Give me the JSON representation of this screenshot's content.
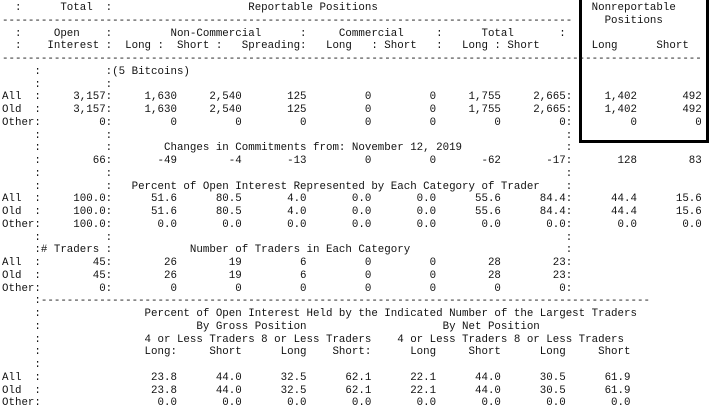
{
  "report": {
    "lines": [
      "  :      Total  :                     Reportable Positions                                 Nonreportable",
      "----------------------------------------------------------------------------------------     Positions",
      "  :     Open    :         Non-Commercial      :     Commercial     :      Total       :",
      "  :    Interest :  Long :  Short :   Spreading:   Long   : Short   :   Long : Short        Long      Short",
      "------------------------------------------------------------------------------------------------------------",
      "     :          :(5 Bitcoins)",
      "     :          :",
      "All  :     3,157:     1,630     2,540       125         0         0     1,755     2,665:     1,402       492",
      "Old  :     3,157:     1,630     2,540       125         0         0     1,755     2,665:     1,402       492",
      "Other:         0:         0         0         0         0         0         0         0:         0         0",
      "     :          :                                                                      :",
      "     :          :        Changes in Commitments from: November 12, 2019                :",
      "     :        66:       -49        -4       -13         0         0       -62       -17:       128        83",
      "     :          :                                                                      :",
      "     :          :   Percent of Open Interest Represented by Each Category of Trader    :",
      "All  :     100.0:      51.6      80.5       4.0       0.0       0.0      55.6      84.4:      44.4      15.6",
      "Old  :     100.0:      51.6      80.5       4.0       0.0       0.0      55.6      84.4:      44.4      15.6",
      "Other:     100.0:       0.0       0.0       0.0       0.0       0.0       0.0       0.0:       0.0       0.0",
      "     :          :                                                                      :",
      "     :# Traders :            Number of Traders in Each Category                        :",
      "All  :        45:        26        19         6         0         0        28        23:",
      "Old  :        45:        26        19         6         0         0        28        23:",
      "Other:         0:         0         0         0         0         0         0         0:",
      "     :----------------------------------------------------------------------------------------------",
      "     :                Percent of Open Interest Held by the Indicated Number of the Largest Traders",
      "     :                        By Gross Position                     By Net Position",
      "     :                4 or Less Traders 8 or Less Traders    4 or Less Traders 8 or Less Traders",
      "     :                Long:     Short      Long    Short:      Long     Short      Long     Short",
      "     :",
      "All  :                 23.8      44.0      32.5      62.1      22.1      44.0      30.5      61.9",
      "Old  :                 23.8      44.0      32.5      62.1      22.1      44.0      30.5      61.9",
      "Other:                  0.0       0.0       0.0       0.0       0.0       0.0       0.0       0.0"
    ]
  }
}
